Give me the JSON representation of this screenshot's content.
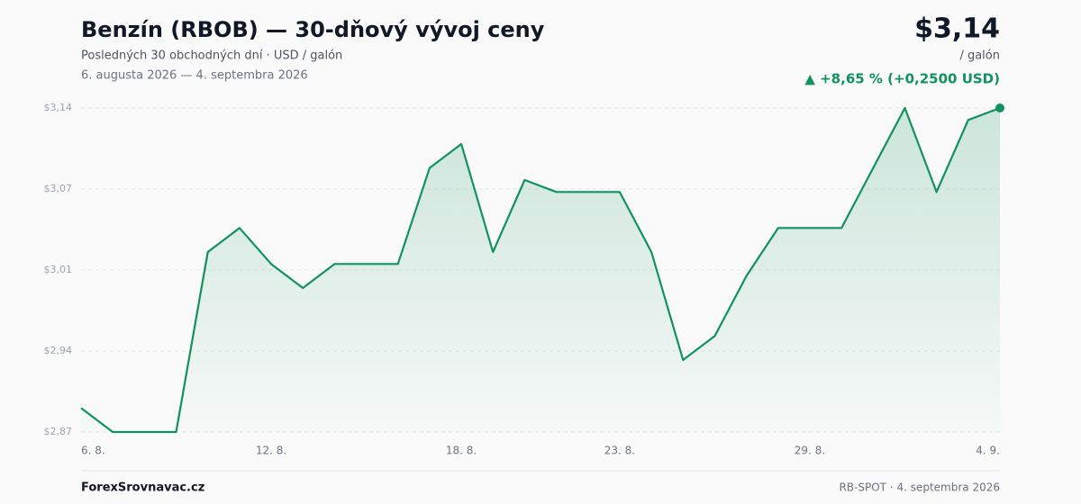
{
  "header": {
    "title": "Benzín (RBOB) — 30-dňový vývoj ceny",
    "subtitle": "Posledných 30 obchodných dní · USD / galón",
    "date_range": "6. augusta 2026 — 4. septembra 2026",
    "price": "$3,14",
    "unit": "/ galón",
    "change": "▲ +8,65 % (+0,2500 USD)"
  },
  "chart_data": {
    "type": "line",
    "categories": [
      "6. 8.",
      null,
      null,
      null,
      null,
      null,
      "12. 8.",
      null,
      null,
      null,
      null,
      null,
      "18. 8.",
      null,
      null,
      null,
      null,
      "23. 8.",
      null,
      null,
      null,
      null,
      null,
      "29. 8.",
      null,
      null,
      null,
      null,
      null,
      "4. 9."
    ],
    "series": [
      {
        "name": "RBOB",
        "color": "#11925f",
        "values": [
          2.89,
          2.87,
          2.87,
          2.87,
          3.02,
          3.04,
          3.01,
          2.99,
          3.01,
          3.01,
          3.01,
          3.09,
          3.11,
          3.02,
          3.08,
          3.07,
          3.07,
          3.07,
          3.02,
          2.93,
          2.95,
          3.0,
          3.04,
          3.04,
          3.04,
          3.09,
          3.14,
          3.07,
          3.13,
          3.14
        ]
      }
    ],
    "ylim": [
      2.87,
      3.14
    ],
    "yticks": [
      {
        "value": 2.87,
        "label": "$2,87"
      },
      {
        "value": 2.9375,
        "label": "$2,94"
      },
      {
        "value": 3.005,
        "label": "$3,01"
      },
      {
        "value": 3.0725,
        "label": "$3,07"
      },
      {
        "value": 3.14,
        "label": "$3,14"
      }
    ],
    "grid": true
  },
  "footer": {
    "brand": "ForexSrovnavac.cz",
    "source": "RB-SPOT · 4. septembra 2026"
  }
}
